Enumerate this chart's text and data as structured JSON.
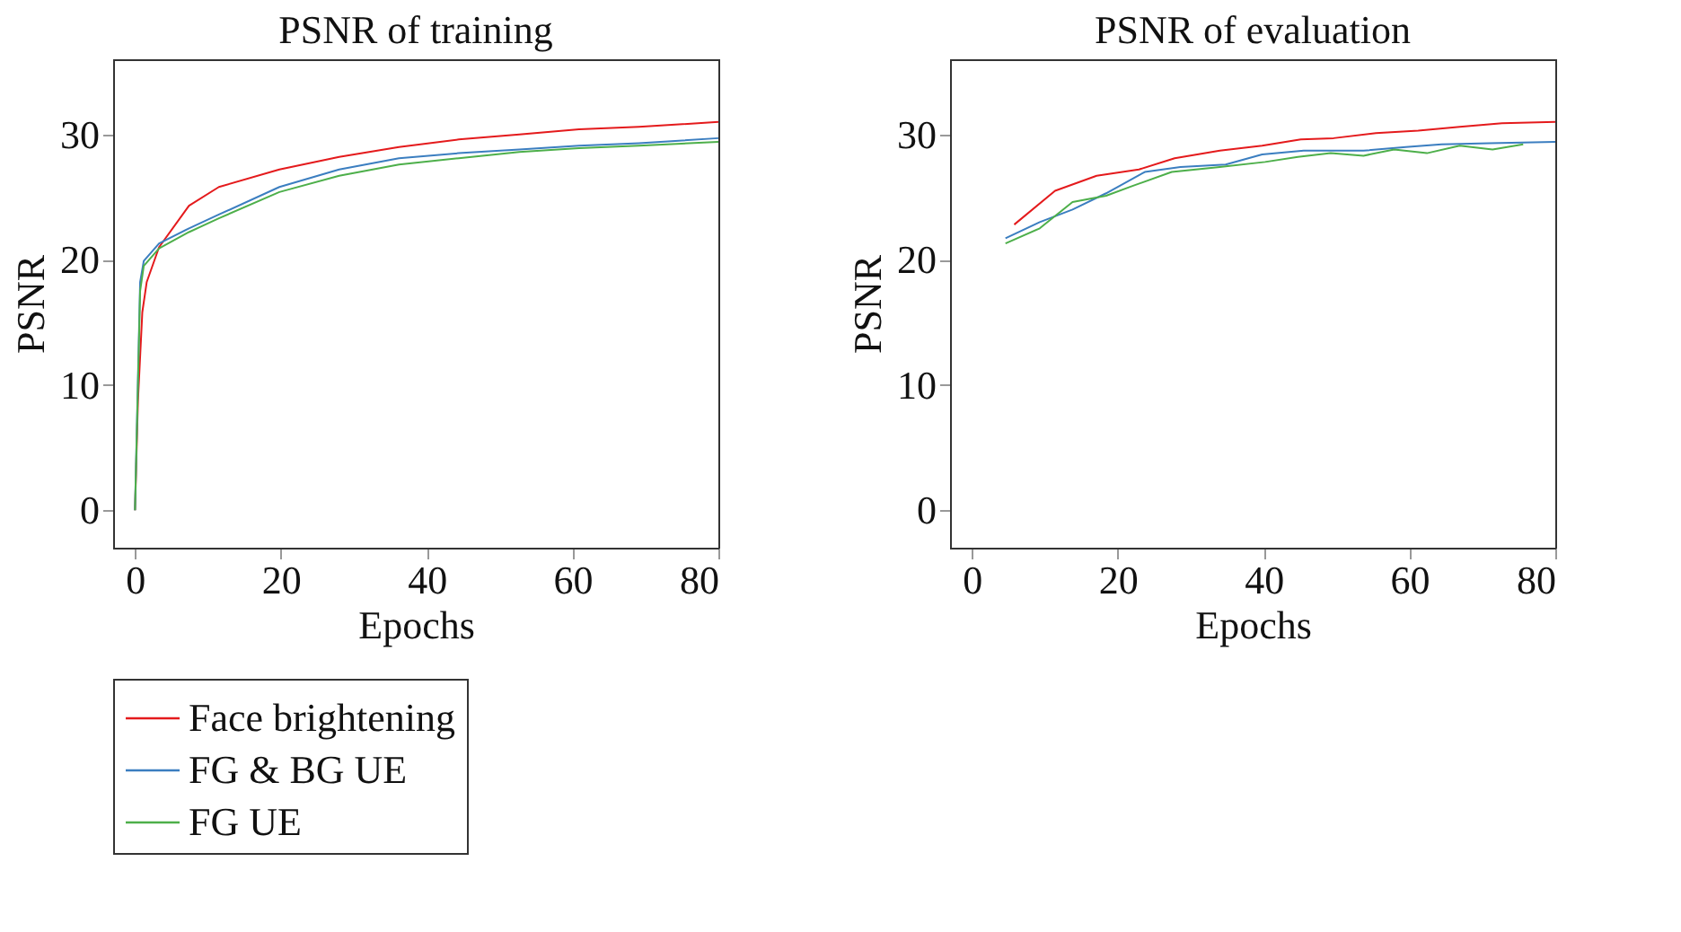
{
  "chart_data": [
    {
      "type": "line",
      "title": "PSNR of training",
      "xlabel": "Epochs",
      "ylabel": "PSNR",
      "xlim": [
        -3,
        80
      ],
      "ylim": [
        -3,
        36
      ],
      "xticks": [
        0,
        20,
        40,
        60,
        80
      ],
      "yticks": [
        0,
        10,
        20,
        30
      ],
      "grid": false,
      "legend": "bottom",
      "marker": "none",
      "line_style": "solid",
      "series": [
        {
          "name": "Face brightening",
          "color": "#e41a1c",
          "x": [
            0,
            0.4,
            1,
            1.6,
            3.3,
            7.4,
            11.5,
            19.8,
            28,
            36.2,
            44.4,
            52.7,
            60.9,
            69.1,
            80
          ],
          "values": [
            0,
            8.7,
            15.8,
            18.2,
            21,
            24.3,
            25.8,
            27.2,
            28.2,
            29,
            29.6,
            30,
            30.4,
            30.6,
            31
          ]
        },
        {
          "name": "FG & BG UE",
          "color": "#3b7ec0",
          "x": [
            0,
            0.7,
            1.2,
            3.3,
            7.4,
            11.5,
            19.8,
            28,
            36.2,
            44.4,
            52.7,
            60.9,
            69.1,
            80
          ],
          "values": [
            0,
            18.2,
            19.9,
            21.3,
            22.5,
            23.6,
            25.8,
            27.2,
            28.1,
            28.5,
            28.8,
            29.1,
            29.3,
            29.7
          ]
        },
        {
          "name": "FG UE",
          "color": "#4daf4a",
          "x": [
            0,
            0.7,
            1.2,
            3.3,
            7.4,
            11.5,
            19.8,
            28,
            36.2,
            44.4,
            52.7,
            60.9,
            69.1,
            80
          ],
          "values": [
            0,
            17.5,
            19.5,
            20.9,
            22.2,
            23.3,
            25.4,
            26.7,
            27.6,
            28.1,
            28.6,
            28.9,
            29.1,
            29.4
          ]
        }
      ]
    },
    {
      "type": "line",
      "title": "PSNR of evaluation",
      "xlabel": "Epochs",
      "ylabel": "PSNR",
      "xlim": [
        -3,
        80
      ],
      "ylim": [
        -3,
        36
      ],
      "xticks": [
        0,
        20,
        40,
        60,
        80
      ],
      "yticks": [
        0,
        10,
        20,
        30
      ],
      "grid": false,
      "legend": "bottom",
      "marker": "none",
      "line_style": "solid",
      "series": [
        {
          "name": "Face brightening",
          "color": "#e41a1c",
          "x": [
            5.8,
            11.4,
            17.1,
            22.9,
            27.8,
            34,
            39.8,
            45.1,
            49.6,
            55.4,
            61.2,
            66.9,
            72.7,
            80
          ],
          "values": [
            22.8,
            25.5,
            26.7,
            27.2,
            28.1,
            28.7,
            29.1,
            29.6,
            29.7,
            30.1,
            30.3,
            30.6,
            30.9,
            31
          ]
        },
        {
          "name": "FG & BG UE",
          "color": "#3b7ec0",
          "x": [
            4.6,
            9.3,
            13.8,
            18.4,
            23.7,
            28.6,
            34.8,
            39.8,
            45.5,
            53.7,
            59.5,
            64.4,
            71,
            80
          ],
          "values": [
            21.7,
            23,
            24,
            25.3,
            27,
            27.4,
            27.6,
            28.4,
            28.7,
            28.7,
            29,
            29.2,
            29.3,
            29.4
          ]
        },
        {
          "name": "FG UE",
          "color": "#4daf4a",
          "x": [
            4.6,
            9.3,
            13.8,
            18.4,
            22.1,
            27.4,
            34,
            40.2,
            44.7,
            49.2,
            53.7,
            57.9,
            62.4,
            66.9,
            71.4,
            75.6
          ],
          "values": [
            21.3,
            22.5,
            24.6,
            25.1,
            25.9,
            27,
            27.4,
            27.8,
            28.2,
            28.5,
            28.3,
            28.8,
            28.5,
            29.1,
            28.8,
            29.2
          ]
        }
      ]
    }
  ]
}
